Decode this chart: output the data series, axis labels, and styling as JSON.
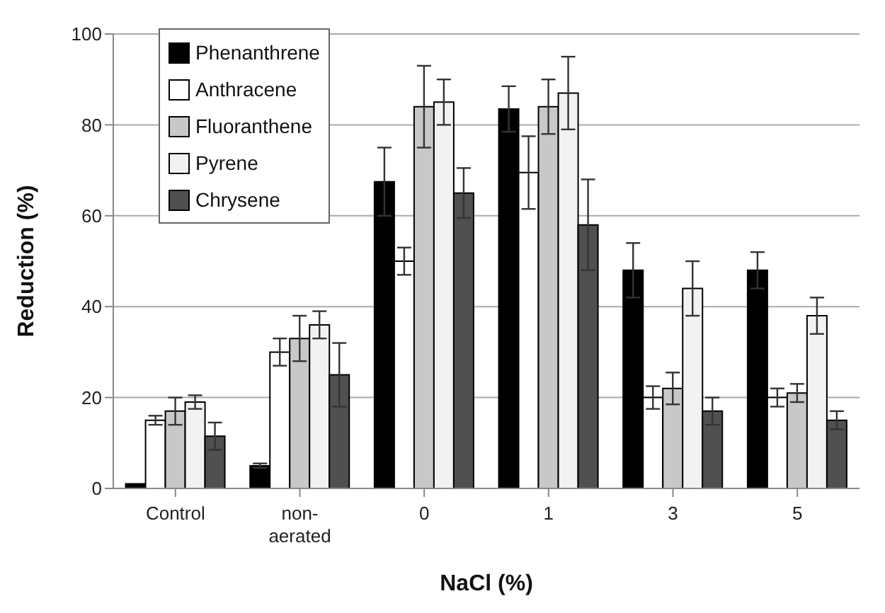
{
  "chart_data": {
    "type": "bar",
    "xlabel": "NaCl (%)",
    "ylabel": "Reduction (%)",
    "categories": [
      "Control",
      "non-\naerated",
      "0",
      "1",
      "3",
      "5"
    ],
    "series": [
      {
        "name": "Phenanthrene",
        "color": "#000000",
        "values": [
          1,
          5,
          67.5,
          83.5,
          48,
          48
        ],
        "errors": [
          null,
          0.5,
          7.5,
          5,
          6,
          4
        ]
      },
      {
        "name": "Anthracene",
        "color": "#ffffff",
        "values": [
          15,
          30,
          50,
          69.5,
          20,
          20
        ],
        "errors": [
          1,
          3,
          3,
          8,
          2.5,
          2
        ]
      },
      {
        "name": "Fluoranthene",
        "color": "#c8c8c8",
        "values": [
          17,
          33,
          84,
          84,
          22,
          21
        ],
        "errors": [
          3,
          5,
          9,
          6,
          3.5,
          2
        ]
      },
      {
        "name": "Pyrene",
        "color": "#f2f2f2",
        "values": [
          19,
          36,
          85,
          87,
          44,
          38
        ],
        "errors": [
          1.5,
          3,
          5,
          8,
          6,
          4
        ]
      },
      {
        "name": "Chrysene",
        "color": "#505050",
        "values": [
          11.5,
          25,
          65,
          58,
          17,
          15
        ],
        "errors": [
          3,
          7,
          5.5,
          10,
          3,
          2
        ]
      }
    ],
    "ylim": [
      0,
      100
    ],
    "yticks": [
      0,
      20,
      40,
      60,
      80,
      100
    ],
    "grid": "y",
    "legend": "top left"
  }
}
